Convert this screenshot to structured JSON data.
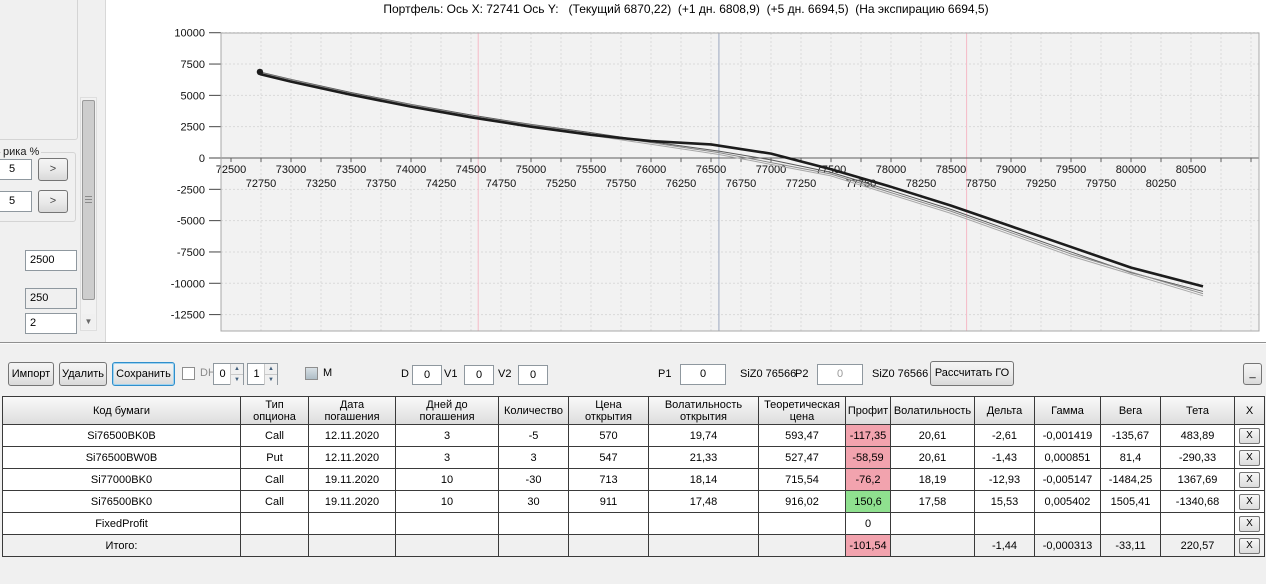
{
  "title": "Портфель: Ось X: 72741 Ось Y:   (Текущий 6870,22)  (+1 дн. 6808,9)  (+5 дн. 6694,5)  (На экспирацию 6694,5)",
  "sidebar": {
    "group_label": "рика %",
    "percent_value_1": "5",
    "percent_value_2": "5",
    "arrow_button": ">",
    "field_1": "2500",
    "field_2": "250",
    "field_3": "2",
    "scroll_down_glyph": "▼"
  },
  "toolbar": {
    "import": "Импорт",
    "delete": "Удалить",
    "save": "Сохранить",
    "dh_label": "DH",
    "spin1_value": "0",
    "spin2_value": "1",
    "m_label": "M",
    "d_label": "D",
    "d_value": "0",
    "v1_label": "V1",
    "v1_value": "0",
    "v2_label": "V2",
    "v2_value": "0",
    "p1_label": "P1",
    "p1_value": "0",
    "p1_ticker": "SiZ0 76566",
    "p2_label": "P2",
    "p2_value": "0",
    "p2_ticker": "SiZ0 76566",
    "calc_button": "Рассчитать ГО",
    "collapse_button": "_"
  },
  "colors": {
    "profit_negative": "#F2A3AE",
    "profit_positive": "#8FE08F",
    "current_price_line": "#9aa7bf",
    "bound_line": "#f5b9c6"
  },
  "table": {
    "headers": [
      "Код бумаги",
      "Тип\nопциона",
      "Дата\nпогашения",
      "Дней до\nпогашения",
      "Количество",
      "Цена\nоткрытия",
      "Волатильность\nоткрытия",
      "Теоретическая\nцена",
      "Профит",
      "Волатильность",
      "Дельта",
      "Гамма",
      "Вега",
      "Тета",
      "X"
    ],
    "delete_label": "X",
    "rows": [
      {
        "cells": [
          "Si76500BK0B",
          "Call",
          "12.11.2020",
          "3",
          "-5",
          "570",
          "19,74",
          "593,47",
          "-117,35",
          "20,61",
          "-2,61",
          "-0,001419",
          "-135,67",
          "483,89"
        ],
        "profit_bg": "negative",
        "total": false
      },
      {
        "cells": [
          "Si76500BW0B",
          "Put",
          "12.11.2020",
          "3",
          "3",
          "547",
          "21,33",
          "527,47",
          "-58,59",
          "20,61",
          "-1,43",
          "0,000851",
          "81,4",
          "-290,33"
        ],
        "profit_bg": "negative",
        "total": false
      },
      {
        "cells": [
          "Si77000BK0",
          "Call",
          "19.11.2020",
          "10",
          "-30",
          "713",
          "18,14",
          "715,54",
          "-76,2",
          "18,19",
          "-12,93",
          "-0,005147",
          "-1484,25",
          "1367,69"
        ],
        "profit_bg": "negative",
        "total": false
      },
      {
        "cells": [
          "Si76500BK0",
          "Call",
          "19.11.2020",
          "10",
          "30",
          "911",
          "17,48",
          "916,02",
          "150,6",
          "17,58",
          "15,53",
          "0,005402",
          "1505,41",
          "-1340,68"
        ],
        "profit_bg": "positive",
        "total": false
      },
      {
        "cells": [
          "FixedProfit",
          "",
          "",
          "",
          "",
          "",
          "",
          "",
          "0",
          "",
          "",
          "",
          "",
          ""
        ],
        "profit_bg": "none",
        "total": false
      },
      {
        "cells": [
          "Итого:",
          "",
          "",
          "",
          "",
          "",
          "",
          "",
          "-101,54",
          "",
          "-1,44",
          "-0,000313",
          "-33,11",
          "220,57"
        ],
        "profit_bg": "negative",
        "total": true
      }
    ]
  },
  "chart_data": {
    "type": "line",
    "title": "Портфель",
    "plot_bg": "#f2f2f2",
    "grid_color": "#d9d9d9",
    "axis_color": "#5e5e5e",
    "x_axis": {
      "min": 72500,
      "max": 80500,
      "tick_step": 250,
      "labels_row1": [
        72500,
        73000,
        73500,
        74000,
        74500,
        75000,
        75500,
        76000,
        76500,
        77000,
        77500,
        78000,
        78500,
        79000,
        79500,
        80000,
        80500
      ],
      "labels_row2": [
        72750,
        73250,
        73750,
        74250,
        74750,
        75250,
        75750,
        76250,
        76750,
        77250,
        77750,
        78250,
        78750,
        79250,
        79750,
        80250
      ]
    },
    "y_axis": {
      "min": -12500,
      "max": 10000,
      "ticks": [
        10000,
        7500,
        5000,
        2500,
        0,
        -2500,
        -5000,
        -7500,
        -10000,
        -12500
      ]
    },
    "markers": {
      "current_price_line": {
        "x": 76566
      },
      "bound_lines": [
        {
          "x": 74560
        },
        {
          "x": 78630
        }
      ],
      "start_dot": {
        "x": 72741,
        "y": 6870
      }
    },
    "series": [
      {
        "name": "Текущий",
        "color": "#5a5a5a",
        "width": 1,
        "points": [
          [
            72741,
            6870
          ],
          [
            73000,
            6280
          ],
          [
            73500,
            5230
          ],
          [
            74000,
            4280
          ],
          [
            74500,
            3430
          ],
          [
            75000,
            2680
          ],
          [
            75500,
            2030
          ],
          [
            76000,
            1300
          ],
          [
            76566,
            550
          ],
          [
            77000,
            -150
          ],
          [
            77500,
            -1150
          ],
          [
            78000,
            -2600
          ],
          [
            78500,
            -4100
          ],
          [
            79000,
            -5800
          ],
          [
            79500,
            -7500
          ],
          [
            80000,
            -9150
          ],
          [
            80600,
            -10650
          ]
        ]
      },
      {
        "name": "+1 дн.",
        "color": "#8a8a8a",
        "width": 1,
        "points": [
          [
            72741,
            6809
          ],
          [
            73500,
            5150
          ],
          [
            74500,
            3340
          ],
          [
            75500,
            1940
          ],
          [
            76566,
            430
          ],
          [
            77500,
            -1280
          ],
          [
            78500,
            -4250
          ],
          [
            79500,
            -7660
          ],
          [
            80600,
            -10830
          ]
        ]
      },
      {
        "name": "+5 дн.",
        "color": "#a8a8a8",
        "width": 1,
        "points": [
          [
            72741,
            6694
          ],
          [
            73500,
            5040
          ],
          [
            74500,
            3220
          ],
          [
            75500,
            1810
          ],
          [
            76566,
            280
          ],
          [
            77500,
            -1430
          ],
          [
            78500,
            -4420
          ],
          [
            79500,
            -7830
          ],
          [
            80600,
            -11000
          ]
        ]
      },
      {
        "name": "На экспирацию",
        "color": "#1c1c1c",
        "width": 2.6,
        "points": [
          [
            72741,
            6694
          ],
          [
            73000,
            6100
          ],
          [
            73500,
            5050
          ],
          [
            74000,
            4100
          ],
          [
            74500,
            3250
          ],
          [
            75000,
            2500
          ],
          [
            75500,
            1850
          ],
          [
            76000,
            1350
          ],
          [
            76500,
            1080
          ],
          [
            77000,
            350
          ],
          [
            77500,
            -900
          ],
          [
            78000,
            -2300
          ],
          [
            78500,
            -3800
          ],
          [
            79000,
            -5450
          ],
          [
            79500,
            -7100
          ],
          [
            80000,
            -8750
          ],
          [
            80600,
            -10250
          ]
        ]
      }
    ]
  }
}
